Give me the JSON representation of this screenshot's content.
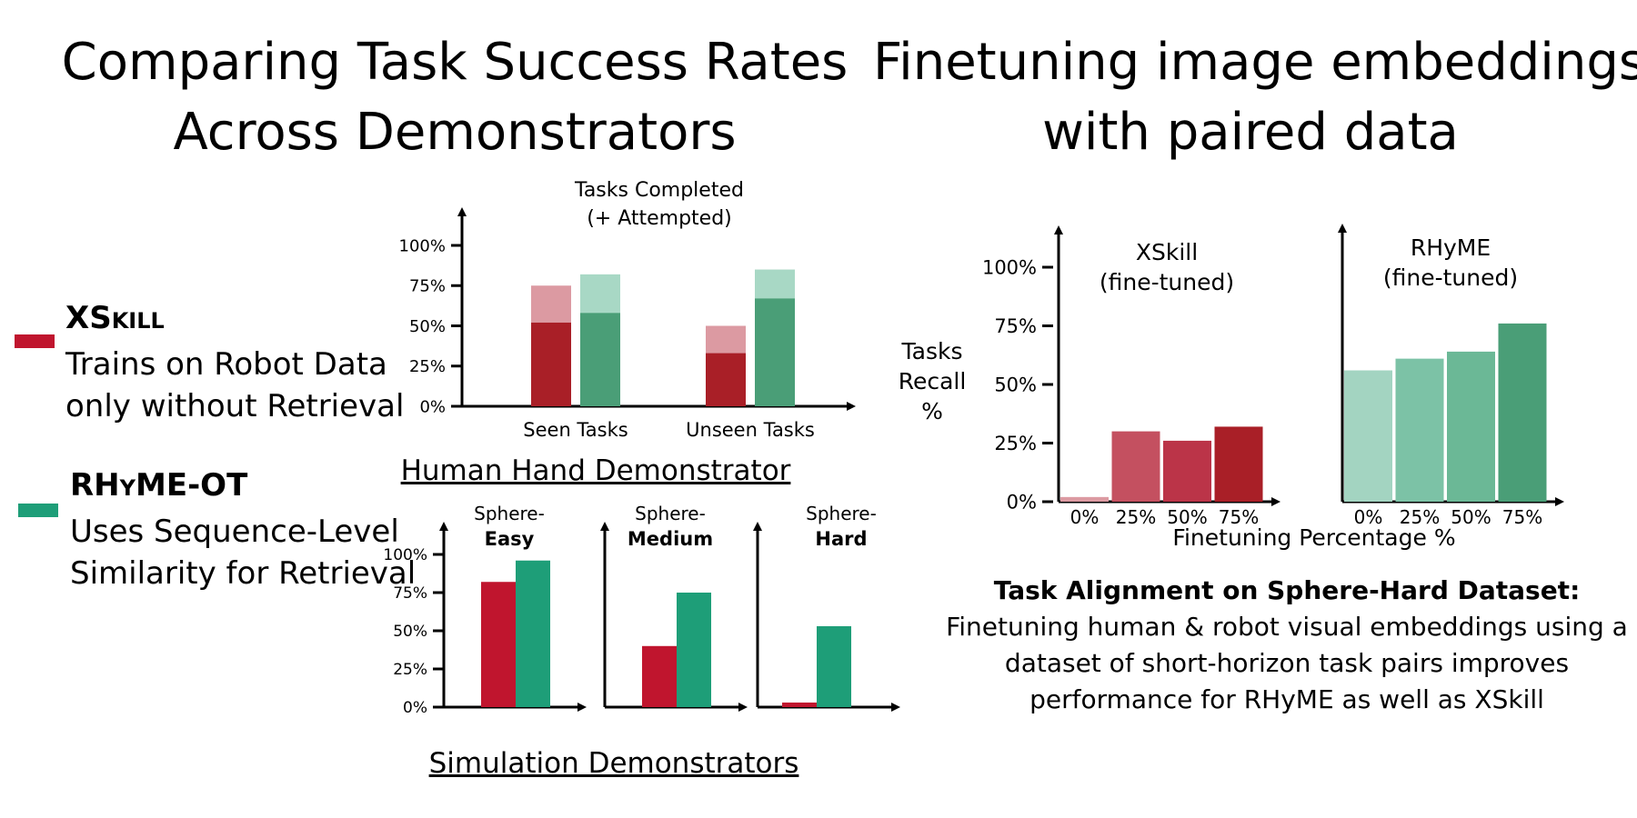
{
  "titles": {
    "left_line1": "Comparing Task Success Rates",
    "left_line2": "Across Demonstrators",
    "right_line1": "Finetuning image embeddings",
    "right_line2": "with paired data"
  },
  "colors": {
    "xskill": "#c0152e",
    "rhyme": "#1e9e78",
    "xskill_dark": "#a91f27",
    "xskill_light": "#dc9aa2",
    "rhyme_dark": "#4a9e77",
    "rhyme_light": "#a8d8c5"
  },
  "legend": [
    {
      "name": "XSkill",
      "desc_line1": "Trains on Robot Data",
      "desc_line2": "only without Retrieval",
      "color": "#c0152e"
    },
    {
      "name": "RHyME-OT",
      "desc_line1": "Uses Sequence-Level",
      "desc_line2": "Similarity for Retrieval",
      "color": "#1e9e78"
    }
  ],
  "captions": {
    "human": "Human Hand Demonstrator",
    "simulation": "Simulation Demonstrators"
  },
  "note": {
    "heading": "Task Alignment on Sphere-Hard Dataset:",
    "line1": "Finetuning human & robot visual embeddings using a",
    "line2": "dataset of short-horizon task pairs improves",
    "line3": "performance for RHyME as well as XSkill"
  },
  "chart_data": [
    {
      "type": "bar",
      "title": "Tasks Completed\n(+ Attempted)",
      "categories": [
        "Seen Tasks",
        "Unseen Tasks"
      ],
      "yticks": [
        "100%",
        "75%",
        "50%",
        "25%",
        "0%"
      ],
      "ylim": [
        0,
        100
      ],
      "series": [
        {
          "group": "XSkill",
          "completed": [
            52,
            33
          ],
          "attempted": [
            75,
            50
          ]
        },
        {
          "group": "RHyME-OT",
          "completed": [
            58,
            67
          ],
          "attempted": [
            82,
            85
          ]
        }
      ]
    },
    {
      "type": "bar",
      "yticks": [
        "100%",
        "75%",
        "50%",
        "25%",
        "0%"
      ],
      "ylim": [
        0,
        100
      ],
      "panels": [
        {
          "label_top": "Sphere-",
          "label_bold": "Easy",
          "values": [
            82,
            96
          ]
        },
        {
          "label_top": "Sphere-",
          "label_bold": "Medium",
          "values": [
            40,
            75
          ]
        },
        {
          "label_top": "Sphere-",
          "label_bold": "Hard",
          "values": [
            3,
            53
          ]
        }
      ]
    },
    {
      "type": "bar",
      "ylabel": "Tasks\nRecall\n%",
      "xlabel": "Finetuning Percentage %",
      "yticks": [
        "100%",
        "75%",
        "50%",
        "25%",
        "0%"
      ],
      "ylim": [
        0,
        100
      ],
      "panels": [
        {
          "title": "XSkill\n(fine-tuned)",
          "categories": [
            "0%",
            "25%",
            "50%",
            "75%"
          ],
          "values": [
            2,
            30,
            26,
            32
          ]
        },
        {
          "title": "RHyME\n(fine-tuned)",
          "categories": [
            "0%",
            "25%",
            "50%",
            "75%"
          ],
          "values": [
            56,
            61,
            64,
            76
          ]
        }
      ]
    }
  ]
}
